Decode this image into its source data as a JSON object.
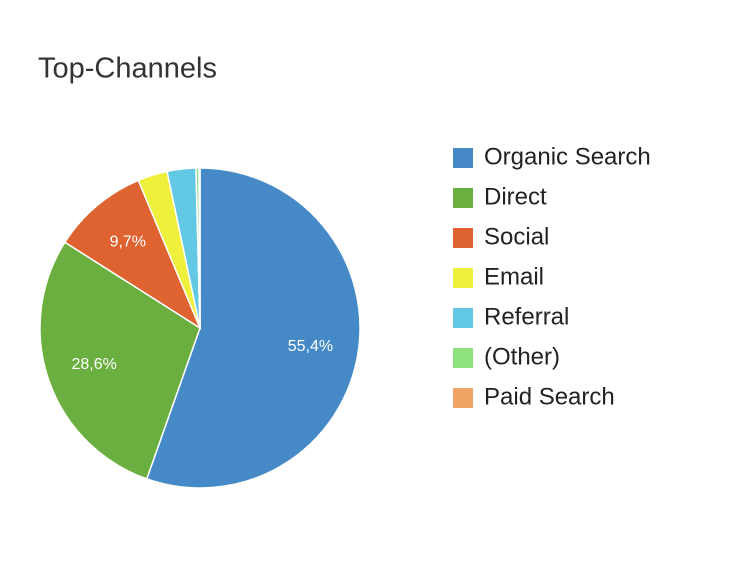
{
  "chart_data": {
    "type": "pie",
    "title": "Top-Channels",
    "categories": [
      "Organic Search",
      "Direct",
      "Social",
      "Email",
      "Referral",
      "(Other)",
      "Paid Search"
    ],
    "values": [
      55.4,
      28.6,
      9.7,
      3.0,
      2.9,
      0.3,
      0.1
    ],
    "value_labels": [
      "55,4%",
      "28,6%",
      "9,7%",
      null,
      null,
      null,
      null
    ],
    "colors": [
      "#4589c6",
      "#6aaf3f",
      "#df6330",
      "#eff03c",
      "#63c8e4",
      "#8fe07f",
      "#f0a465"
    ],
    "legend": "right"
  }
}
